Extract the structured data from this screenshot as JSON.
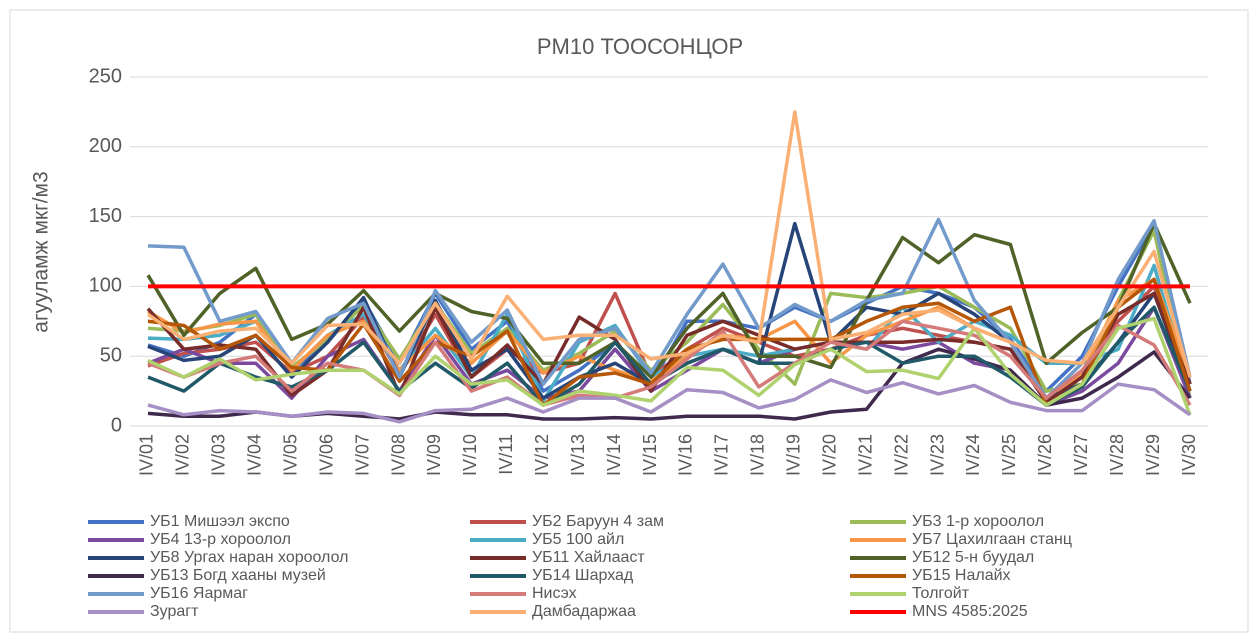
{
  "chart_data": {
    "type": "line",
    "title": "PM10 ТООСОНЦОР",
    "y_label": "агууламж мкг/м3",
    "categories": [
      "IV/01",
      "IV/02",
      "IV/03",
      "IV/04",
      "IV/05",
      "IV/06",
      "IV/07",
      "IV/08",
      "IV/09",
      "IV/10",
      "IV/11",
      "IV/12",
      "IV/13",
      "IV/14",
      "IV/15",
      "IV/16",
      "IV/17",
      "IV/18",
      "IV/19",
      "IV/20",
      "IV/21",
      "IV/22",
      "IV/23",
      "IV/24",
      "IV/25",
      "IV/26",
      "IV/27",
      "IV/28",
      "IV/29",
      "IV/30"
    ],
    "ylim": [
      0,
      250
    ],
    "yticks": [
      0,
      50,
      100,
      150,
      200,
      250
    ],
    "grid": true,
    "legend": "bottom",
    "series": [
      {
        "name": "УБ1 Мишээл экспо",
        "color": "#4472c4",
        "values": [
          58,
          50,
          60,
          80,
          40,
          60,
          90,
          45,
          95,
          55,
          75,
          25,
          40,
          60,
          30,
          75,
          75,
          70,
          85,
          75,
          88,
          100,
          95,
          85,
          62,
          25,
          50,
          100,
          145,
          30
        ]
      },
      {
        "name": "УБ2 Баруун 4 зам",
        "color": "#c0504d",
        "values": [
          43,
          52,
          55,
          60,
          38,
          50,
          78,
          38,
          80,
          35,
          55,
          38,
          45,
          95,
          35,
          55,
          70,
          60,
          50,
          55,
          65,
          70,
          65,
          60,
          55,
          20,
          35,
          75,
          100,
          30
        ]
      },
      {
        "name": "УБ3 1-р хороолол",
        "color": "#9bbb59",
        "values": [
          70,
          68,
          72,
          80,
          42,
          62,
          86,
          48,
          88,
          52,
          70,
          40,
          52,
          68,
          40,
          60,
          87,
          55,
          30,
          95,
          92,
          95,
          100,
          85,
          70,
          25,
          30,
          90,
          140,
          20
        ]
      },
      {
        "name": "УБ4 13-р хороолол",
        "color": "#7b4a9e",
        "values": [
          45,
          55,
          45,
          45,
          20,
          50,
          62,
          25,
          65,
          30,
          40,
          20,
          25,
          55,
          25,
          40,
          55,
          45,
          55,
          60,
          60,
          55,
          60,
          45,
          40,
          15,
          25,
          45,
          85,
          20
        ]
      },
      {
        "name": "УБ5 100 айл",
        "color": "#4bacc6",
        "values": [
          63,
          62,
          65,
          75,
          40,
          65,
          80,
          40,
          70,
          35,
          80,
          18,
          60,
          72,
          35,
          50,
          55,
          50,
          55,
          60,
          55,
          85,
          60,
          75,
          65,
          45,
          45,
          55,
          115,
          25
        ]
      },
      {
        "name": "УБ7 Цахилгаан станц",
        "color": "#f79646",
        "values": [
          82,
          67,
          73,
          75,
          40,
          65,
          75,
          40,
          65,
          45,
          68,
          38,
          50,
          40,
          32,
          50,
          65,
          62,
          75,
          45,
          65,
          75,
          85,
          70,
          60,
          20,
          38,
          90,
          105,
          35
        ]
      },
      {
        "name": "УБ8 Ургах наран хороолол",
        "color": "#264478",
        "values": [
          57,
          47,
          50,
          65,
          35,
          60,
          92,
          35,
          90,
          40,
          55,
          20,
          35,
          45,
          30,
          45,
          55,
          45,
          145,
          60,
          85,
          80,
          95,
          80,
          60,
          20,
          30,
          60,
          95,
          25
        ]
      },
      {
        "name": "УБ11 Хайлааст",
        "color": "#772c2a",
        "values": [
          84,
          55,
          58,
          55,
          22,
          40,
          85,
          22,
          85,
          35,
          58,
          30,
          78,
          62,
          25,
          65,
          75,
          65,
          55,
          60,
          60,
          60,
          62,
          60,
          55,
          17,
          35,
          80,
          95,
          30
        ]
      },
      {
        "name": "УБ12 5-н буудал",
        "color": "#4f6228",
        "values": [
          108,
          65,
          95,
          113,
          62,
          73,
          97,
          68,
          95,
          82,
          77,
          45,
          45,
          60,
          35,
          70,
          95,
          50,
          50,
          42,
          90,
          135,
          117,
          137,
          130,
          45,
          67,
          85,
          145,
          88
        ]
      },
      {
        "name": "УБ13 Богд хааны музей",
        "color": "#3f2a4e",
        "values": [
          9,
          7,
          7,
          10,
          7,
          9,
          7,
          5,
          10,
          8,
          8,
          5,
          5,
          6,
          5,
          7,
          7,
          7,
          5,
          10,
          12,
          45,
          55,
          48,
          40,
          15,
          20,
          35,
          53,
          20
        ]
      },
      {
        "name": "УБ14 Шархад",
        "color": "#215968",
        "values": [
          35,
          25,
          45,
          35,
          28,
          40,
          60,
          25,
          45,
          27,
          45,
          15,
          30,
          60,
          30,
          45,
          55,
          45,
          45,
          55,
          60,
          45,
          50,
          50,
          35,
          15,
          28,
          60,
          85,
          25
        ]
      },
      {
        "name": "УБ15 Налайх",
        "color": "#b65708",
        "values": [
          75,
          72,
          55,
          65,
          42,
          40,
          73,
          32,
          60,
          50,
          68,
          15,
          35,
          38,
          30,
          55,
          62,
          62,
          62,
          62,
          75,
          85,
          88,
          75,
          85,
          15,
          30,
          85,
          105,
          25
        ]
      },
      {
        "name": "УБ16 Яармаг",
        "color": "#729aca",
        "values": [
          129,
          128,
          75,
          82,
          45,
          77,
          88,
          35,
          97,
          60,
          83,
          30,
          62,
          70,
          38,
          80,
          116,
          70,
          87,
          75,
          90,
          95,
          148,
          90,
          60,
          20,
          45,
          105,
          147,
          35
        ]
      },
      {
        "name": "Нисэх",
        "color": "#d47b79",
        "values": [
          45,
          35,
          45,
          50,
          25,
          45,
          40,
          22,
          60,
          25,
          35,
          15,
          22,
          20,
          28,
          48,
          68,
          28,
          45,
          60,
          55,
          75,
          70,
          65,
          50,
          20,
          40,
          72,
          58,
          15
        ]
      },
      {
        "name": "Толгойт",
        "color": "#afd26f",
        "values": [
          47,
          35,
          48,
          33,
          37,
          40,
          40,
          23,
          50,
          30,
          33,
          15,
          25,
          22,
          18,
          42,
          40,
          22,
          44,
          55,
          39,
          40,
          34,
          70,
          37,
          15,
          30,
          70,
          77,
          8
        ]
      },
      {
        "name": "Зурагт",
        "color": "#a58fc4",
        "values": [
          15,
          8,
          11,
          10,
          7,
          10,
          9,
          3,
          11,
          12,
          20,
          10,
          20,
          20,
          10,
          26,
          24,
          13,
          19,
          33,
          24,
          31,
          23,
          29,
          17,
          11,
          11,
          30,
          26,
          8
        ]
      },
      {
        "name": "Дамбадаржаа",
        "color": "#fab074",
        "values": [
          80,
          62,
          68,
          70,
          45,
          72,
          73,
          45,
          88,
          48,
          93,
          62,
          65,
          65,
          48,
          52,
          65,
          60,
          225,
          62,
          67,
          80,
          83,
          70,
          60,
          47,
          45,
          85,
          125,
          35
        ]
      },
      {
        "name": "MNS 4585:2025",
        "color": "#ff0000",
        "values": [
          100,
          100,
          100,
          100,
          100,
          100,
          100,
          100,
          100,
          100,
          100,
          100,
          100,
          100,
          100,
          100,
          100,
          100,
          100,
          100,
          100,
          100,
          100,
          100,
          100,
          100,
          100,
          100,
          100,
          100
        ]
      }
    ]
  }
}
